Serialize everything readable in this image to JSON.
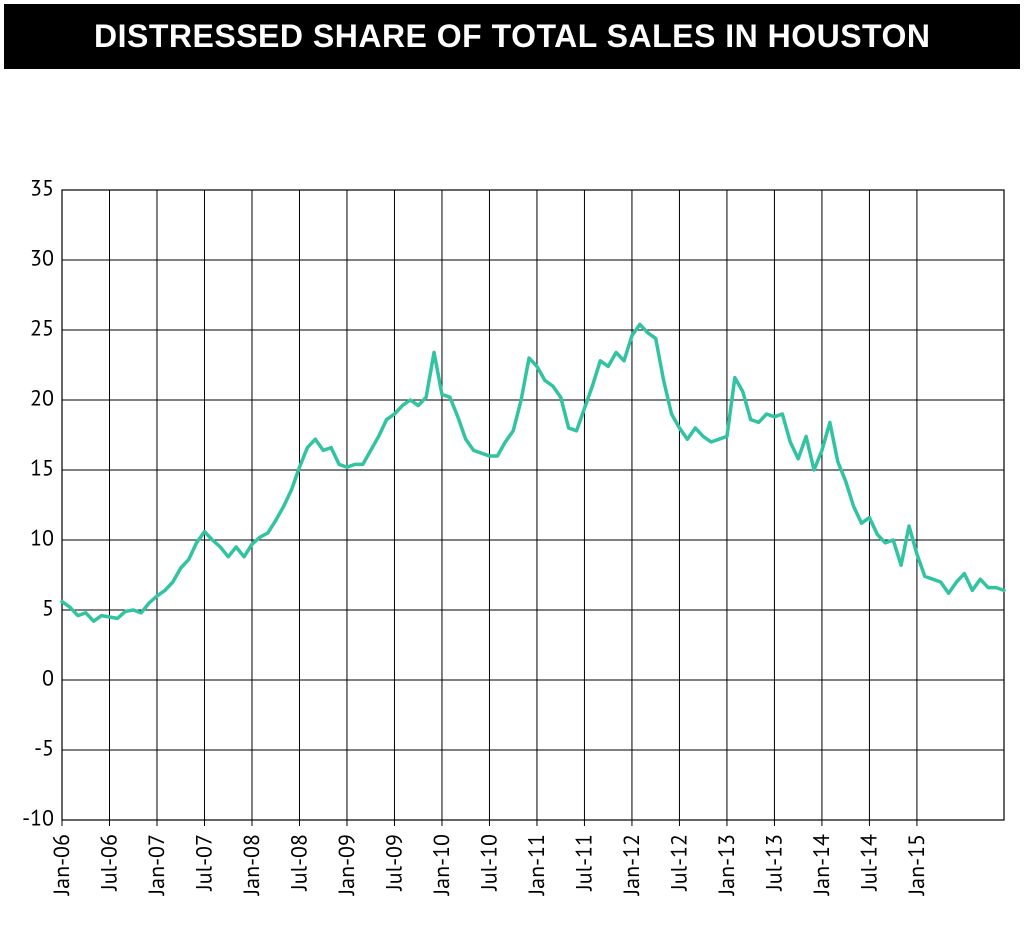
{
  "title": "DISTRESSED SHARE OF TOTAL SALES IN HOUSTON",
  "chart": {
    "type": "line",
    "background_color": "#ffffff",
    "grid_color": "#000000",
    "grid_stroke_width": 1,
    "border_stroke_width": 1.2,
    "line_color": "#31c3a2",
    "line_stroke_width": 3.5,
    "ylim": [
      -10,
      35
    ],
    "ytick_step": 5,
    "yticks": [
      -10,
      -5,
      0,
      5,
      10,
      15,
      20,
      25,
      30,
      35
    ],
    "ytick_fontsize": 22,
    "xtick_fontsize": 22,
    "x_labels": [
      "Jan-06",
      "Jul-06",
      "Jan-07",
      "Jul-07",
      "Jan-08",
      "Jul-08",
      "Jan-09",
      "Jul-09",
      "Jan-10",
      "Jul-10",
      "Jan-11",
      "Jul-11",
      "Jan-12",
      "Jul-12",
      "Jan-13",
      "Jul-13",
      "Jan-14",
      "Jul-14",
      "Jan-15"
    ],
    "x_count": 112,
    "values": [
      5.6,
      5.2,
      4.6,
      4.8,
      4.2,
      4.6,
      4.5,
      4.4,
      4.9,
      5.0,
      4.8,
      5.5,
      6.0,
      6.4,
      7.0,
      8.0,
      8.6,
      9.8,
      10.6,
      10.0,
      9.5,
      8.8,
      9.5,
      8.8,
      9.7,
      10.2,
      10.5,
      11.4,
      12.4,
      13.6,
      15.2,
      16.6,
      17.2,
      16.4,
      16.6,
      15.4,
      15.2,
      15.4,
      15.4,
      16.4,
      17.4,
      18.6,
      19.0,
      19.6,
      20.0,
      19.6,
      20.2,
      23.4,
      20.4,
      20.2,
      18.8,
      17.2,
      16.4,
      16.2,
      16.0,
      16.0,
      17.0,
      17.8,
      20.0,
      23.0,
      22.4,
      21.4,
      21.0,
      20.2,
      18.0,
      17.8,
      19.4,
      21.0,
      22.8,
      22.4,
      23.4,
      22.8,
      24.6,
      25.4,
      24.8,
      24.4,
      21.4,
      19.0,
      18.0,
      17.2,
      18.0,
      17.4,
      17.0,
      17.2,
      17.4,
      21.6,
      20.6,
      18.6,
      18.4,
      19.0,
      18.8,
      19.0,
      17.0,
      15.8,
      17.4,
      15.0,
      16.4,
      18.4,
      15.6,
      14.2,
      12.4,
      11.2,
      11.6,
      10.4,
      9.8,
      10.0,
      8.2,
      11.0,
      9.0,
      7.4,
      7.2,
      7.0
    ],
    "values_tail": [
      6.2,
      7.0,
      7.6,
      6.4,
      7.2,
      6.6,
      6.6,
      6.4
    ]
  }
}
